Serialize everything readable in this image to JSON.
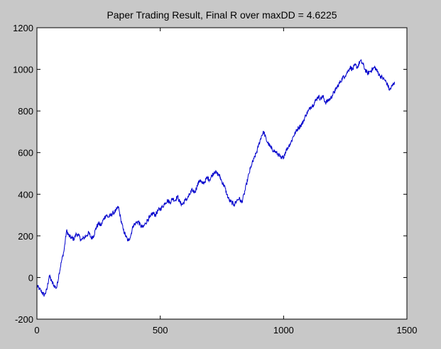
{
  "chart_data": {
    "type": "line",
    "title": "Paper Trading Result, Final R over maxDD = 4.6225",
    "xlabel": "",
    "ylabel": "",
    "xlim": [
      0,
      1500
    ],
    "ylim": [
      -200,
      1200
    ],
    "x_ticks": [
      "0",
      "500",
      "1000",
      "1500"
    ],
    "y_ticks": [
      "-200",
      "0",
      "200",
      "400",
      "600",
      "800",
      "1000",
      "1200"
    ],
    "grid": false,
    "legend": "none",
    "colors": {
      "figure_bg": "#c8c8c8",
      "axes_bg": "#ffffff",
      "line": "#0000cc"
    },
    "series": [
      {
        "x": [
          0,
          10,
          20,
          30,
          40,
          50,
          60,
          70,
          80,
          90,
          100,
          110,
          120,
          130,
          140,
          150,
          160,
          170,
          180,
          190,
          200,
          210,
          220,
          230,
          240,
          250,
          260,
          270,
          280,
          290,
          300,
          310,
          320,
          330,
          340,
          350,
          360,
          370,
          380,
          390,
          400,
          410,
          420,
          430,
          440,
          450,
          460,
          470,
          480,
          490,
          500,
          510,
          520,
          530,
          540,
          550,
          560,
          570,
          580,
          590,
          600,
          610,
          620,
          630,
          640,
          650,
          660,
          670,
          680,
          690,
          700,
          710,
          720,
          730,
          740,
          750,
          760,
          770,
          780,
          790,
          800,
          810,
          820,
          830,
          840,
          850,
          860,
          870,
          880,
          890,
          900,
          910,
          920,
          930,
          940,
          950,
          960,
          970,
          980,
          990,
          1000,
          1010,
          1020,
          1030,
          1040,
          1050,
          1060,
          1070,
          1080,
          1090,
          1100,
          1110,
          1120,
          1130,
          1140,
          1150,
          1160,
          1170,
          1180,
          1190,
          1200,
          1210,
          1220,
          1230,
          1240,
          1250,
          1260,
          1270,
          1280,
          1290,
          1300,
          1310,
          1320,
          1330,
          1340,
          1350,
          1360,
          1370,
          1380,
          1390,
          1400,
          1410,
          1420,
          1430,
          1440,
          1450
        ],
        "values": [
          -40,
          -55,
          -70,
          -85,
          -60,
          10,
          -20,
          -40,
          -50,
          20,
          80,
          130,
          225,
          200,
          190,
          185,
          210,
          200,
          180,
          190,
          200,
          215,
          190,
          200,
          240,
          260,
          250,
          280,
          300,
          290,
          300,
          310,
          320,
          340,
          280,
          230,
          200,
          175,
          200,
          250,
          260,
          270,
          250,
          240,
          260,
          280,
          290,
          310,
          300,
          320,
          330,
          340,
          360,
          370,
          360,
          380,
          370,
          390,
          360,
          350,
          370,
          380,
          400,
          420,
          410,
          440,
          470,
          450,
          460,
          480,
          470,
          490,
          510,
          500,
          490,
          460,
          440,
          400,
          370,
          360,
          350,
          370,
          380,
          360,
          400,
          450,
          500,
          540,
          570,
          600,
          640,
          680,
          700,
          660,
          640,
          620,
          610,
          600,
          590,
          570,
          580,
          610,
          630,
          650,
          680,
          700,
          720,
          730,
          750,
          780,
          800,
          820,
          830,
          850,
          870,
          860,
          870,
          840,
          850,
          860,
          880,
          900,
          920,
          940,
          960,
          970,
          990,
          1010,
          1000,
          1020,
          1010,
          1040,
          1030,
          1000,
          980,
          990,
          1000,
          1010,
          990,
          970,
          960,
          950,
          930,
          900,
          920,
          940
        ]
      }
    ]
  }
}
